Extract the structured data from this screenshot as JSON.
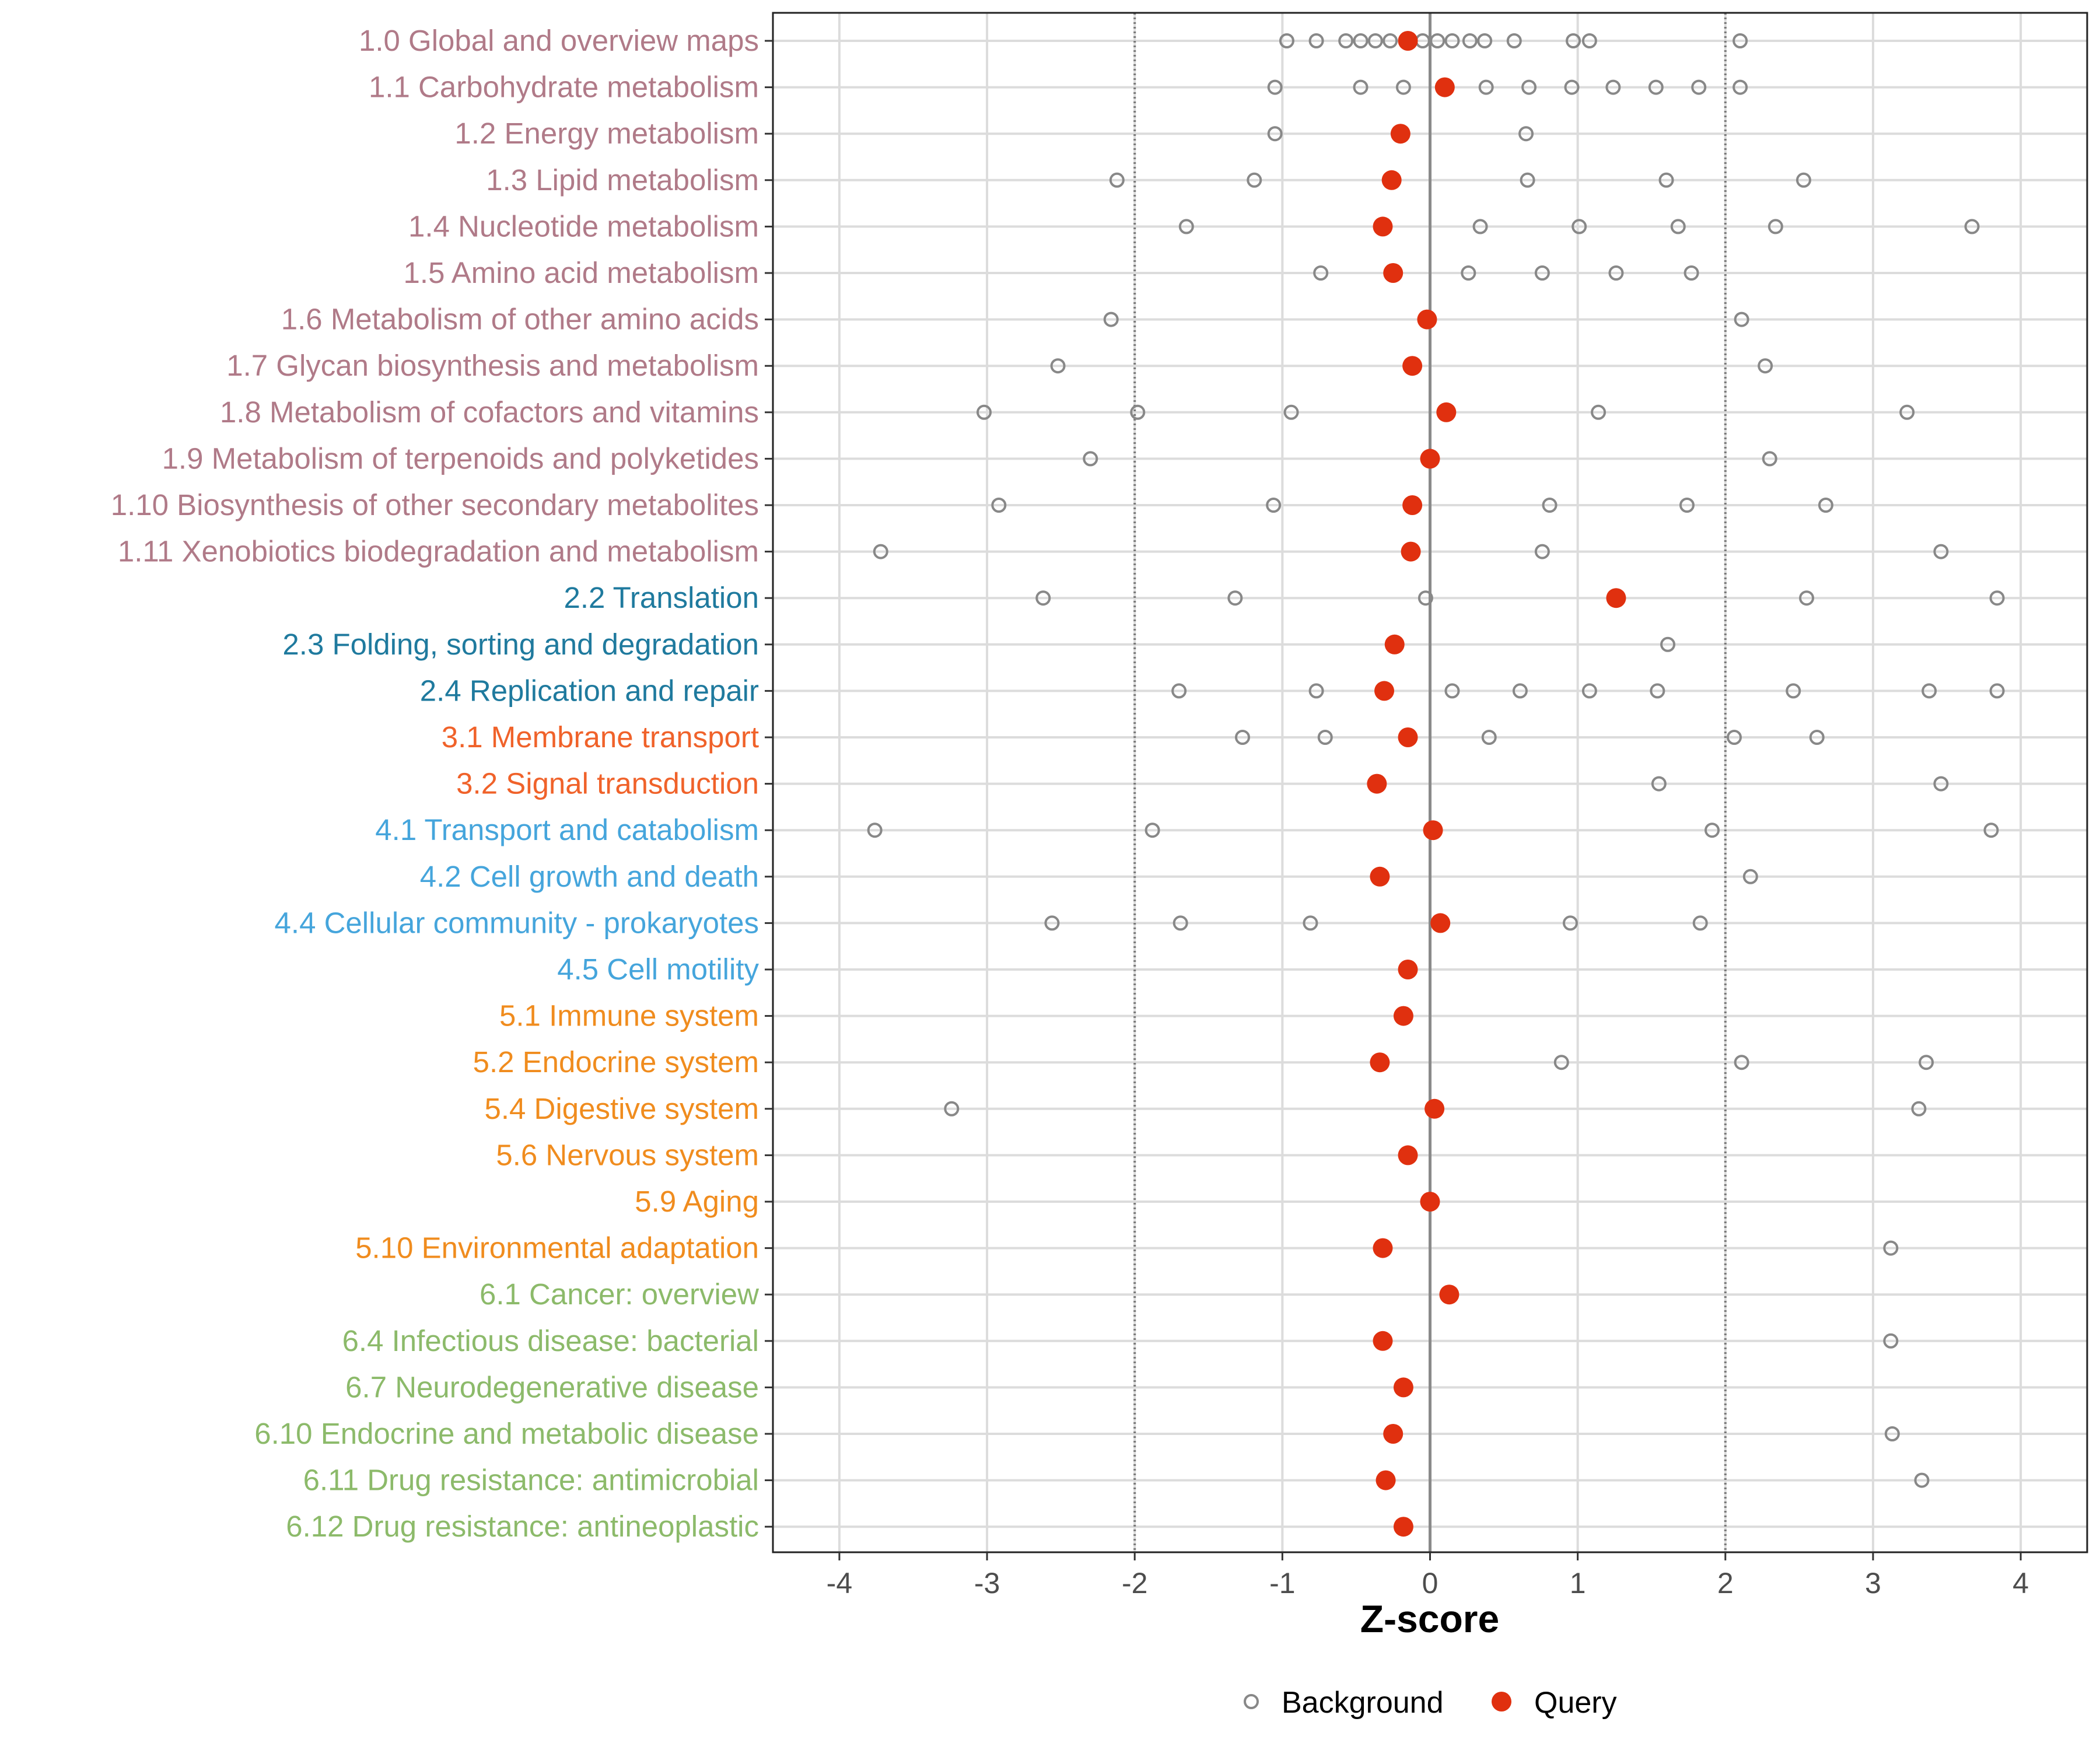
{
  "chart_data": {
    "type": "scatter",
    "xlabel": "Z-score",
    "xlim": [
      -4.45,
      4.45
    ],
    "x_ticks": [
      -4,
      -3,
      -2,
      -1,
      0,
      1,
      2,
      3,
      4
    ],
    "x_tick_labels": [
      "-4",
      "-3",
      "-2",
      "-1",
      "0",
      "1",
      "2",
      "3",
      "4"
    ],
    "reference_lines": [
      {
        "x": -2,
        "style": "dotted"
      },
      {
        "x": 0,
        "style": "solid"
      },
      {
        "x": 2,
        "style": "dotted"
      }
    ],
    "legend": {
      "position": "bottom",
      "entries": [
        {
          "label": "Background",
          "marker": "open-circle"
        },
        {
          "label": "Query",
          "marker": "filled-circle"
        }
      ]
    },
    "colors": {
      "background_marker": "#888888",
      "query_marker": "#e0300f",
      "group_1": "#b07a88",
      "group_2": "#1f7a9e",
      "group_3": "#f0622a",
      "group_4": "#45a5dc",
      "group_5": "#f08c1e",
      "group_6": "#8cba6a"
    },
    "categories": [
      {
        "label": "1.0 Global and overview maps",
        "group": 1,
        "query": -0.15,
        "background": [
          -0.97,
          -0.77,
          -0.57,
          -0.47,
          -0.37,
          -0.27,
          -0.05,
          0.05,
          0.15,
          0.27,
          0.37,
          0.57,
          0.97,
          1.08,
          2.1
        ]
      },
      {
        "label": "1.1 Carbohydrate metabolism",
        "group": 1,
        "query": 0.1,
        "background": [
          -1.05,
          -0.47,
          -0.18,
          0.38,
          0.67,
          0.96,
          1.24,
          1.53,
          1.82,
          2.1
        ]
      },
      {
        "label": "1.2 Energy metabolism",
        "group": 1,
        "query": -0.2,
        "background": [
          -1.05,
          0.65
        ]
      },
      {
        "label": "1.3 Lipid metabolism",
        "group": 1,
        "query": -0.26,
        "background": [
          -2.12,
          -1.19,
          0.66,
          1.6,
          2.53
        ]
      },
      {
        "label": "1.4 Nucleotide metabolism",
        "group": 1,
        "query": -0.32,
        "background": [
          -1.65,
          0.34,
          1.01,
          1.68,
          2.34,
          3.67
        ]
      },
      {
        "label": "1.5 Amino acid metabolism",
        "group": 1,
        "query": -0.25,
        "background": [
          -0.74,
          0.26,
          0.76,
          1.26,
          1.77
        ]
      },
      {
        "label": "1.6 Metabolism of other amino acids",
        "group": 1,
        "query": -0.02,
        "background": [
          -2.16,
          2.11
        ]
      },
      {
        "label": "1.7 Glycan biosynthesis and metabolism",
        "group": 1,
        "query": -0.12,
        "background": [
          -2.52,
          2.27
        ]
      },
      {
        "label": "1.8 Metabolism of cofactors and vitamins",
        "group": 1,
        "query": 0.11,
        "background": [
          -3.02,
          -1.98,
          -0.94,
          1.14,
          3.23
        ]
      },
      {
        "label": "1.9 Metabolism of terpenoids and polyketides",
        "group": 1,
        "query": 0.0,
        "background": [
          -2.3,
          2.3
        ]
      },
      {
        "label": "1.10 Biosynthesis of other secondary metabolites",
        "group": 1,
        "query": -0.12,
        "background": [
          -2.92,
          -1.06,
          0.81,
          1.74,
          2.68
        ]
      },
      {
        "label": "1.11 Xenobiotics biodegradation and metabolism",
        "group": 1,
        "query": -0.13,
        "background": [
          -3.72,
          0.76,
          3.46
        ]
      },
      {
        "label": "2.2 Translation",
        "group": 2,
        "query": 1.26,
        "background": [
          -2.62,
          -1.32,
          -0.03,
          2.55,
          3.84
        ]
      },
      {
        "label": "2.3 Folding, sorting and degradation",
        "group": 2,
        "query": -0.24,
        "background": [
          1.61
        ]
      },
      {
        "label": "2.4 Replication and repair",
        "group": 2,
        "query": -0.31,
        "background": [
          -1.7,
          -0.77,
          0.15,
          0.61,
          1.08,
          1.54,
          2.46,
          3.38,
          3.84
        ]
      },
      {
        "label": "3.1 Membrane transport",
        "group": 3,
        "query": -0.15,
        "background": [
          -1.27,
          -0.71,
          0.4,
          2.06,
          2.62
        ]
      },
      {
        "label": "3.2 Signal transduction",
        "group": 3,
        "query": -0.36,
        "background": [
          1.55,
          3.46
        ]
      },
      {
        "label": "4.1 Transport and catabolism",
        "group": 4,
        "query": 0.02,
        "background": [
          -3.76,
          -1.88,
          1.91,
          3.8
        ]
      },
      {
        "label": "4.2 Cell growth and death",
        "group": 4,
        "query": -0.34,
        "background": [
          2.17
        ]
      },
      {
        "label": "4.4 Cellular community - prokaryotes",
        "group": 4,
        "query": 0.07,
        "background": [
          -2.56,
          -1.69,
          -0.81,
          0.95,
          1.83
        ]
      },
      {
        "label": "4.5 Cell motility",
        "group": 4,
        "query": -0.15,
        "background": []
      },
      {
        "label": "5.1 Immune system",
        "group": 5,
        "query": -0.18,
        "background": []
      },
      {
        "label": "5.2 Endocrine system",
        "group": 5,
        "query": -0.34,
        "background": [
          0.89,
          2.11,
          3.36
        ]
      },
      {
        "label": "5.4 Digestive system",
        "group": 5,
        "query": 0.03,
        "background": [
          -3.24,
          3.31
        ]
      },
      {
        "label": "5.6 Nervous system",
        "group": 5,
        "query": -0.15,
        "background": []
      },
      {
        "label": "5.9 Aging",
        "group": 5,
        "query": 0.0,
        "background": []
      },
      {
        "label": "5.10 Environmental adaptation",
        "group": 5,
        "query": -0.32,
        "background": [
          3.12
        ]
      },
      {
        "label": "6.1 Cancer: overview",
        "group": 6,
        "query": 0.13,
        "background": []
      },
      {
        "label": "6.4 Infectious disease: bacterial",
        "group": 6,
        "query": -0.32,
        "background": [
          3.12
        ]
      },
      {
        "label": "6.7 Neurodegenerative disease",
        "group": 6,
        "query": -0.18,
        "background": []
      },
      {
        "label": "6.10 Endocrine and metabolic disease",
        "group": 6,
        "query": -0.25,
        "background": [
          3.13
        ]
      },
      {
        "label": "6.11 Drug resistance: antimicrobial",
        "group": 6,
        "query": -0.3,
        "background": [
          3.33
        ]
      },
      {
        "label": "6.12 Drug resistance: antineoplastic",
        "group": 6,
        "query": -0.18,
        "background": []
      }
    ]
  }
}
